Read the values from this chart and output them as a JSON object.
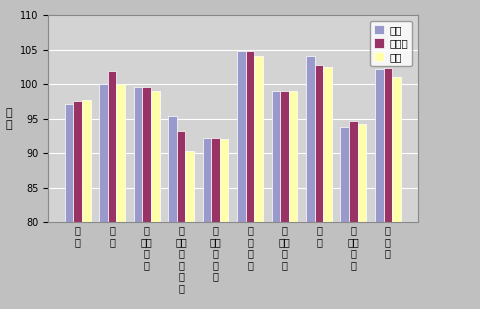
{
  "categories": [
    "食\n料",
    "住\n居",
    "光\n熱・\n水\n道",
    "家\n具・\n家\n事\n用\n品",
    "被\n服及\nび\n履\n物",
    "保\n健\n医\n療",
    "交\n通・\n通\n信",
    "教\n育",
    "教\n養・\n娯\n楽",
    "諸\n雑\n費"
  ],
  "tsu": [
    97.2,
    100.0,
    99.6,
    95.5,
    92.2,
    104.9,
    99.0,
    104.1,
    93.8,
    102.2
  ],
  "mie": [
    97.6,
    101.9,
    99.6,
    93.2,
    92.2,
    104.9,
    99.1,
    102.8,
    94.7,
    102.4
  ],
  "zenkoku": [
    97.8,
    100.0,
    99.1,
    90.4,
    92.1,
    104.1,
    99.0,
    102.5,
    94.2,
    101.1
  ],
  "bar_colors": [
    "#9999cc",
    "#993366",
    "#ffffaa"
  ],
  "legend_labels": [
    "津市",
    "三重県",
    "全国"
  ],
  "ylabel": "指\n数",
  "ylim": [
    80,
    110
  ],
  "yticks": [
    80,
    85,
    90,
    95,
    100,
    105,
    110
  ],
  "bg_color": "#c0c0c0",
  "plot_bg_color": "#d3d3d3",
  "grid_color": "#ffffff",
  "bar_width": 0.25,
  "tick_fontsize": 7,
  "legend_fontsize": 7.5
}
